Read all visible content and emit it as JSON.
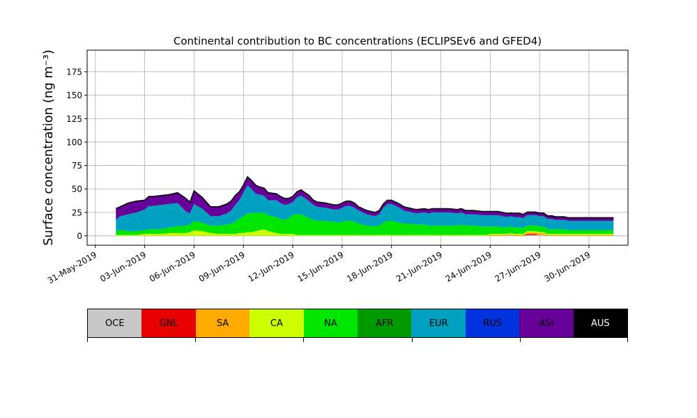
{
  "chart_data": {
    "type": "area",
    "title": "Continental contribution to BC concentrations (ECLIPSEv6 and GFED4)",
    "xlabel": "",
    "ylabel": "Surface concentration (ng m⁻³)",
    "ylim": [
      -10,
      198
    ],
    "yticks": [
      0,
      25,
      50,
      75,
      100,
      125,
      150,
      175
    ],
    "xlim": [
      "2019-05-30T12:00",
      "2019-07-02T09:00"
    ],
    "xticks": [
      "31-May-2019",
      "03-Jun-2019",
      "06-Jun-2019",
      "09-Jun-2019",
      "12-Jun-2019",
      "15-Jun-2019",
      "18-Jun-2019",
      "21-Jun-2019",
      "24-Jun-2019",
      "27-Jun-2019",
      "30-Jun-2019"
    ],
    "grid": true,
    "stacked": true,
    "x": [
      "2019-06-01T06:00",
      "2019-06-01T12:00",
      "2019-06-01T18:00",
      "2019-06-02T00:00",
      "2019-06-02T12:00",
      "2019-06-03T00:00",
      "2019-06-03T06:00",
      "2019-06-03T12:00",
      "2019-06-04T00:00",
      "2019-06-04T12:00",
      "2019-06-05T00:00",
      "2019-06-05T12:00",
      "2019-06-05T18:00",
      "2019-06-06T00:00",
      "2019-06-06T12:00",
      "2019-06-07T00:00",
      "2019-06-07T12:00",
      "2019-06-08T00:00",
      "2019-06-08T06:00",
      "2019-06-08T12:00",
      "2019-06-08T18:00",
      "2019-06-09T00:00",
      "2019-06-09T06:00",
      "2019-06-09T12:00",
      "2019-06-09T18:00",
      "2019-06-10T00:00",
      "2019-06-10T06:00",
      "2019-06-10T12:00",
      "2019-06-11T00:00",
      "2019-06-11T06:00",
      "2019-06-11T12:00",
      "2019-06-11T18:00",
      "2019-06-12T00:00",
      "2019-06-12T06:00",
      "2019-06-12T12:00",
      "2019-06-13T00:00",
      "2019-06-13T06:00",
      "2019-06-13T12:00",
      "2019-06-14T00:00",
      "2019-06-14T06:00",
      "2019-06-14T12:00",
      "2019-06-14T18:00",
      "2019-06-15T00:00",
      "2019-06-15T06:00",
      "2019-06-15T12:00",
      "2019-06-15T18:00",
      "2019-06-16T00:00",
      "2019-06-16T06:00",
      "2019-06-16T12:00",
      "2019-06-17T00:00",
      "2019-06-17T06:00",
      "2019-06-17T12:00",
      "2019-06-17T18:00",
      "2019-06-18T00:00",
      "2019-06-18T06:00",
      "2019-06-18T12:00",
      "2019-06-18T18:00",
      "2019-06-19T00:00",
      "2019-06-19T06:00",
      "2019-06-19T12:00",
      "2019-06-20T00:00",
      "2019-06-20T06:00",
      "2019-06-20T12:00",
      "2019-06-21T00:00",
      "2019-06-21T12:00",
      "2019-06-22T00:00",
      "2019-06-22T06:00",
      "2019-06-22T12:00",
      "2019-06-23T00:00",
      "2019-06-23T12:00",
      "2019-06-23T18:00",
      "2019-06-24T00:00",
      "2019-06-24T06:00",
      "2019-06-24T12:00",
      "2019-06-24T18:00",
      "2019-06-25T00:00",
      "2019-06-25T06:00",
      "2019-06-25T12:00",
      "2019-06-25T18:00",
      "2019-06-26T00:00",
      "2019-06-26T06:00",
      "2019-06-26T12:00",
      "2019-06-26T18:00",
      "2019-06-27T00:00",
      "2019-06-27T06:00",
      "2019-06-27T12:00",
      "2019-06-27T18:00",
      "2019-06-28T00:00",
      "2019-06-28T06:00",
      "2019-06-28T12:00",
      "2019-06-28T18:00",
      "2019-06-29T00:00",
      "2019-06-29T06:00",
      "2019-06-29T12:00",
      "2019-06-29T18:00",
      "2019-06-30T00:00",
      "2019-06-30T06:00",
      "2019-06-30T12:00",
      "2019-06-30T18:00",
      "2019-07-01T00:00",
      "2019-07-01T06:00",
      "2019-07-01T12:00"
    ],
    "series": [
      {
        "name": "OCE",
        "color": "#c8c8c8",
        "values": [
          0,
          0,
          0,
          0,
          0,
          0,
          0,
          0,
          0,
          0,
          0,
          0,
          0,
          0,
          0,
          0,
          0,
          0,
          0,
          0,
          0,
          0,
          0,
          0,
          0,
          0,
          0,
          0,
          0,
          0,
          0,
          0,
          0,
          0,
          0,
          0,
          0,
          0,
          0,
          0,
          0,
          0,
          0,
          0,
          0,
          0,
          0,
          0,
          0,
          0,
          0,
          0,
          0,
          0,
          0,
          0,
          0,
          0,
          0,
          0,
          0,
          0,
          0,
          0,
          0,
          0,
          0,
          0,
          0,
          0,
          0,
          0,
          0,
          0,
          0,
          0,
          1,
          0,
          0,
          0,
          1,
          1,
          1,
          1,
          1,
          0,
          0,
          0,
          0,
          0,
          0,
          0,
          0,
          0,
          0,
          0,
          0,
          0,
          0,
          0,
          0,
          0
        ]
      },
      {
        "name": "GNL",
        "color": "#e60000",
        "values": [
          0,
          0,
          0,
          0,
          0,
          0,
          0,
          0,
          0,
          0,
          0,
          0,
          0,
          0,
          0,
          0,
          0,
          0,
          0,
          0,
          0,
          0,
          0,
          0,
          0,
          0,
          0,
          0,
          0,
          0,
          0,
          0,
          0,
          0,
          0,
          0,
          0,
          0,
          0,
          0,
          0,
          0,
          0,
          0,
          0,
          0,
          0,
          0,
          0,
          0,
          0,
          0,
          0,
          0,
          0,
          0,
          0,
          0,
          0,
          0,
          0,
          0,
          0,
          0,
          0,
          0,
          0,
          0,
          0,
          0,
          0,
          0,
          0,
          0,
          0,
          0,
          0,
          0,
          0,
          0,
          1,
          1,
          1,
          0,
          0,
          0,
          0,
          0,
          0,
          0,
          0,
          0,
          0,
          0,
          0,
          0,
          0,
          0,
          0,
          0,
          0,
          0
        ]
      },
      {
        "name": "SA",
        "color": "#ffaa00",
        "values": [
          0,
          0,
          0,
          0,
          0,
          0,
          0,
          0,
          0,
          0,
          0,
          0,
          0,
          0,
          0,
          0,
          0,
          0,
          0,
          0,
          0,
          0,
          0,
          0,
          0,
          0,
          0,
          0,
          0,
          0,
          0,
          0,
          0,
          0,
          0,
          0,
          0,
          0,
          0,
          0,
          0,
          0,
          0,
          0,
          0,
          0,
          0,
          0,
          0,
          0,
          0,
          0,
          0,
          0,
          0,
          0,
          0,
          0,
          0,
          0,
          0,
          0,
          0,
          0,
          0,
          0,
          0,
          0,
          0,
          0,
          0,
          1,
          1,
          1,
          1,
          1,
          1,
          1,
          1,
          1,
          2,
          2,
          2,
          2,
          2,
          1,
          1,
          1,
          1,
          1,
          1,
          1,
          1,
          1,
          1,
          1,
          1,
          1,
          1,
          1,
          1,
          1
        ]
      },
      {
        "name": "CA",
        "color": "#ccff00",
        "values": [
          1,
          1,
          1,
          1,
          1,
          2,
          2,
          2,
          2,
          3,
          3,
          3,
          4,
          6,
          5,
          3,
          2,
          2,
          2,
          2,
          3,
          3,
          4,
          4,
          5,
          6,
          7,
          5,
          3,
          2,
          2,
          2,
          2,
          1,
          1,
          1,
          1,
          1,
          1,
          1,
          1,
          1,
          1,
          1,
          1,
          1,
          1,
          1,
          1,
          1,
          1,
          1,
          1,
          1,
          1,
          1,
          1,
          1,
          1,
          1,
          1,
          1,
          1,
          1,
          1,
          1,
          1,
          1,
          1,
          1,
          1,
          1,
          1,
          1,
          1,
          1,
          1,
          1,
          1,
          1,
          1,
          1,
          1,
          1,
          1,
          1,
          1,
          1,
          1,
          1,
          1,
          1,
          1,
          1,
          1,
          1,
          1,
          1,
          1,
          1,
          1,
          1
        ]
      },
      {
        "name": "NA",
        "color": "#00e600",
        "values": [
          4,
          5,
          5,
          4,
          4,
          4,
          5,
          5,
          5,
          6,
          7,
          8,
          8,
          10,
          9,
          8,
          9,
          10,
          11,
          13,
          15,
          18,
          20,
          20,
          20,
          18,
          18,
          17,
          17,
          16,
          15,
          17,
          20,
          22,
          22,
          18,
          16,
          15,
          15,
          14,
          14,
          13,
          14,
          15,
          15,
          14,
          12,
          11,
          10,
          9,
          10,
          13,
          15,
          15,
          14,
          13,
          12,
          12,
          12,
          11,
          11,
          10,
          10,
          10,
          10,
          10,
          11,
          10,
          10,
          9,
          9,
          8,
          8,
          8,
          7,
          7,
          7,
          7,
          7,
          6,
          6,
          6,
          6,
          6,
          6,
          5,
          5,
          5,
          5,
          5,
          4,
          4,
          4,
          4,
          4,
          4,
          4,
          4,
          4,
          4,
          4,
          4
        ]
      },
      {
        "name": "AFR",
        "color": "#009900",
        "values": [
          0,
          0,
          0,
          0,
          0,
          0,
          0,
          0,
          0,
          0,
          0,
          0,
          0,
          0,
          0,
          0,
          0,
          0,
          0,
          0,
          0,
          0,
          0,
          0,
          0,
          0,
          0,
          0,
          0,
          0,
          0,
          0,
          0,
          0,
          0,
          0,
          0,
          0,
          0,
          0,
          0,
          0,
          0,
          0,
          0,
          0,
          0,
          0,
          0,
          0,
          0,
          0,
          0,
          0,
          0,
          0,
          0,
          0,
          0,
          0,
          0,
          0,
          0,
          0,
          0,
          0,
          0,
          0,
          0,
          0,
          0,
          0,
          0,
          0,
          0,
          0,
          0,
          0,
          0,
          0,
          0,
          0,
          0,
          0,
          0,
          0,
          0,
          0,
          0,
          0,
          0,
          0,
          0,
          0,
          0,
          0,
          0,
          0,
          0,
          0,
          0,
          0
        ]
      },
      {
        "name": "EUR",
        "color": "#00a0c0",
        "values": [
          12,
          15,
          16,
          18,
          20,
          22,
          25,
          25,
          26,
          25,
          25,
          15,
          12,
          18,
          15,
          10,
          10,
          12,
          14,
          18,
          20,
          25,
          30,
          26,
          20,
          20,
          18,
          16,
          18,
          17,
          16,
          15,
          14,
          18,
          20,
          18,
          16,
          15,
          14,
          14,
          13,
          14,
          15,
          16,
          16,
          15,
          14,
          13,
          12,
          11,
          12,
          16,
          18,
          18,
          17,
          16,
          14,
          13,
          12,
          12,
          13,
          13,
          14,
          14,
          14,
          13,
          13,
          12,
          12,
          12,
          12,
          12,
          12,
          12,
          12,
          11,
          11,
          11,
          11,
          11,
          11,
          11,
          11,
          11,
          11,
          11,
          11,
          10,
          10,
          10,
          10,
          10,
          10,
          10,
          10,
          10,
          10,
          10,
          10,
          10,
          10,
          10
        ]
      },
      {
        "name": "RUS",
        "color": "#0033dd",
        "values": [
          0,
          0,
          0,
          0,
          0,
          0,
          0,
          0,
          0,
          0,
          0,
          0,
          0,
          0,
          0,
          0,
          0,
          0,
          0,
          0,
          0,
          0,
          0,
          0,
          0,
          0,
          0,
          0,
          0,
          0,
          0,
          0,
          0,
          0,
          0,
          0,
          0,
          0,
          0,
          0,
          0,
          0,
          0,
          0,
          0,
          0,
          0,
          0,
          0,
          0,
          0,
          0,
          0,
          0,
          0,
          0,
          0,
          0,
          0,
          0,
          0,
          0,
          0,
          0,
          0,
          0,
          0,
          0,
          0,
          0,
          0,
          0,
          0,
          0,
          0,
          0,
          0,
          0,
          0,
          0,
          0,
          0,
          0,
          0,
          0,
          0,
          0,
          0,
          0,
          0,
          0,
          0,
          0,
          0,
          0,
          0,
          0,
          0,
          0,
          0,
          0,
          0
        ]
      },
      {
        "name": "ASI",
        "color": "#660099",
        "values": [
          12,
          10,
          11,
          12,
          12,
          10,
          10,
          10,
          10,
          10,
          11,
          14,
          12,
          14,
          12,
          10,
          10,
          10,
          10,
          10,
          9,
          8,
          9,
          9,
          9,
          8,
          8,
          8,
          7,
          7,
          7,
          6,
          6,
          6,
          6,
          6,
          5,
          5,
          5,
          5,
          5,
          5,
          5,
          5,
          5,
          5,
          4,
          4,
          4,
          4,
          4,
          4,
          4,
          4,
          4,
          4,
          4,
          4,
          4,
          4,
          4,
          4,
          4,
          4,
          4,
          4,
          4,
          4,
          4,
          4,
          4,
          4,
          4,
          4,
          4,
          4,
          4,
          4,
          4,
          4,
          4,
          4,
          4,
          4,
          4,
          4,
          4,
          4,
          4,
          4,
          4,
          4,
          4,
          4,
          4,
          4,
          4,
          4,
          4,
          4,
          4,
          4
        ]
      },
      {
        "name": "AUS",
        "color": "#000000",
        "values": [
          0,
          0,
          0,
          0,
          0,
          0,
          0,
          0,
          0,
          0,
          0,
          0,
          0,
          0,
          0,
          0,
          0,
          0,
          0,
          0,
          0,
          0,
          0,
          0,
          0,
          0,
          0,
          0,
          0,
          0,
          0,
          0,
          0,
          0,
          0,
          0,
          0,
          0,
          0,
          0,
          0,
          0,
          0,
          0,
          0,
          0,
          0,
          0,
          0,
          0,
          0,
          0,
          0,
          0,
          0,
          0,
          0,
          0,
          0,
          0,
          0,
          0,
          0,
          0,
          0,
          0,
          0,
          0,
          0,
          0,
          0,
          0,
          0,
          0,
          0,
          0,
          0,
          0,
          0,
          0,
          0,
          0,
          0,
          0,
          0,
          0,
          0,
          0,
          0,
          0,
          0,
          0,
          0,
          0,
          0,
          0,
          0,
          0,
          0,
          0,
          0,
          0
        ]
      }
    ],
    "total": [
      29,
      31,
      33,
      35,
      37,
      38,
      42,
      42,
      43,
      44,
      46,
      40,
      36,
      48,
      41,
      31,
      31,
      34,
      37,
      43,
      47,
      54,
      63,
      59,
      54,
      52,
      51,
      46,
      45,
      42,
      40,
      40,
      42,
      47,
      49,
      43,
      38,
      36,
      35,
      34,
      33,
      33,
      35,
      37,
      37,
      35,
      31,
      29,
      27,
      25,
      27,
      34,
      38,
      38,
      36,
      34,
      31,
      30,
      29,
      28,
      29,
      28,
      29,
      29,
      29,
      28,
      29,
      27,
      27,
      26,
      26,
      26,
      26,
      26,
      25,
      24,
      24,
      24,
      24,
      23,
      25,
      25,
      25,
      24,
      24,
      21,
      21,
      20,
      20,
      20,
      19,
      19,
      19,
      19,
      19,
      19,
      19,
      19,
      19,
      19,
      19,
      19
    ]
  }
}
